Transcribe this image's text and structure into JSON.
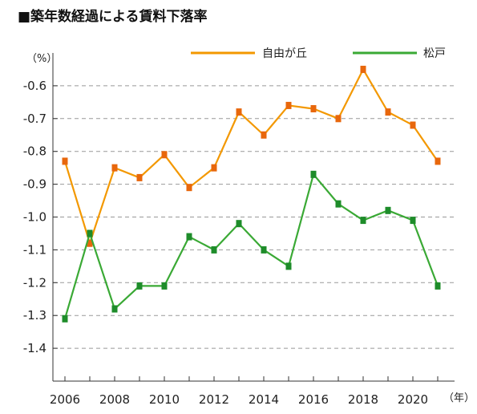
{
  "chart_data": {
    "type": "line",
    "title": "■築年数経過による賃料下落率",
    "y_unit_label": "（%）",
    "x_unit_label": "（年）",
    "x": [
      2006,
      2007,
      2008,
      2009,
      2010,
      2011,
      2012,
      2013,
      2014,
      2015,
      2016,
      2017,
      2018,
      2019,
      2020,
      2021
    ],
    "x_tick_labels": [
      "2006",
      "2008",
      "2010",
      "2012",
      "2014",
      "2016",
      "2018",
      "2020"
    ],
    "x_tick_values": [
      2006,
      2008,
      2010,
      2012,
      2014,
      2016,
      2018,
      2020
    ],
    "y_tick_labels": [
      "-0.6",
      "-0.7",
      "-0.8",
      "-0.9",
      "-1.0",
      "-1.1",
      "-1.2",
      "-1.3",
      "-1.4"
    ],
    "y_tick_values": [
      -0.6,
      -0.7,
      -0.8,
      -0.9,
      -1.0,
      -1.1,
      -1.2,
      -1.3,
      -1.4
    ],
    "ylim": [
      -1.5,
      -0.5
    ],
    "grid": true,
    "legend_position": "top-right",
    "series": [
      {
        "name": "自由が丘",
        "color": "#f39800",
        "marker_color": "#e8670c",
        "values": [
          -0.83,
          -1.08,
          -0.85,
          -0.88,
          -0.81,
          -0.91,
          -0.85,
          -0.68,
          -0.75,
          -0.66,
          -0.67,
          -0.7,
          -0.55,
          -0.68,
          -0.72,
          -0.83
        ]
      },
      {
        "name": "松戸",
        "color": "#3aa935",
        "marker_color": "#1e8c2a",
        "values": [
          -1.31,
          -1.05,
          -1.28,
          -1.21,
          -1.21,
          -1.06,
          -1.1,
          -1.02,
          -1.1,
          -1.15,
          -0.87,
          -0.96,
          -1.01,
          -0.98,
          -1.01,
          -1.21
        ]
      }
    ]
  }
}
